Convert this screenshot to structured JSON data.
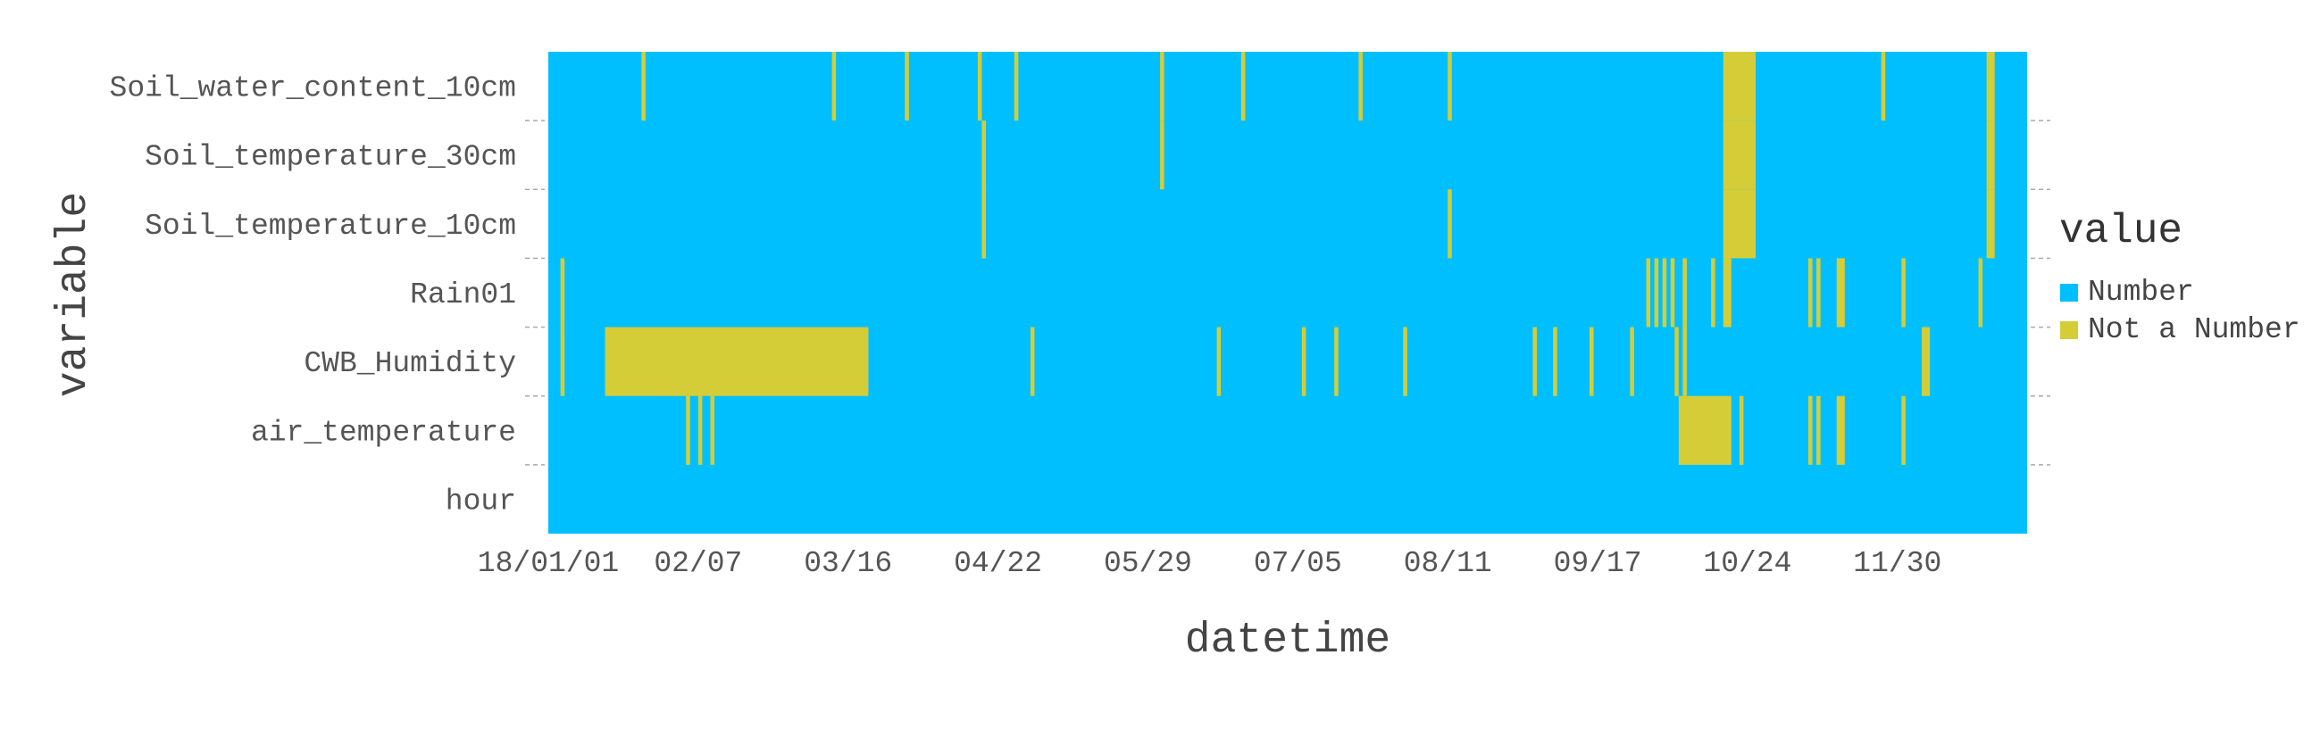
{
  "chart_data": {
    "type": "heatmap",
    "title": "",
    "xlabel": "datetime",
    "ylabel": "variable",
    "x_range": [
      "2018-01-01",
      "2018-12-31"
    ],
    "x_ticks": [
      "18/01/01",
      "02/07",
      "03/16",
      "04/22",
      "05/29",
      "07/05",
      "08/11",
      "09/17",
      "10/24",
      "11/30"
    ],
    "x_tick_dates": [
      "2018-01-01",
      "2018-02-07",
      "2018-03-16",
      "2018-04-22",
      "2018-05-29",
      "2018-07-05",
      "2018-08-11",
      "2018-09-17",
      "2018-10-24",
      "2018-11-30"
    ],
    "variables": [
      "Soil_water_content_10cm",
      "Soil_temperature_30cm",
      "Soil_temperature_10cm",
      "Rain01",
      "CWB_Humidity",
      "air_temperature",
      "hour"
    ],
    "legend": {
      "title": "value",
      "placement": "right",
      "items": [
        {
          "label": "Number",
          "color": "#00BFFF"
        },
        {
          "label": "Not a Number",
          "color": "#D4CD38"
        }
      ]
    },
    "missing_spans": [
      {
        "variable": "Soil_water_content_10cm",
        "spans": [
          [
            "2018-10-18",
            "2018-10-25"
          ],
          [
            "2018-12-22",
            "2018-12-23"
          ],
          [
            "2018-01-24",
            "2018-01-24"
          ],
          [
            "2018-03-12",
            "2018-03-12"
          ],
          [
            "2018-03-30",
            "2018-03-30"
          ],
          [
            "2018-04-17",
            "2018-04-17"
          ],
          [
            "2018-04-26",
            "2018-04-26"
          ],
          [
            "2018-06-01",
            "2018-06-01"
          ],
          [
            "2018-06-21",
            "2018-06-21"
          ],
          [
            "2018-07-20",
            "2018-07-20"
          ],
          [
            "2018-08-11",
            "2018-08-11"
          ],
          [
            "2018-11-26",
            "2018-11-26"
          ]
        ]
      },
      {
        "variable": "Soil_temperature_30cm",
        "spans": [
          [
            "2018-10-18",
            "2018-10-25"
          ],
          [
            "2018-12-22",
            "2018-12-23"
          ],
          [
            "2018-04-18",
            "2018-04-18"
          ],
          [
            "2018-06-01",
            "2018-06-01"
          ]
        ]
      },
      {
        "variable": "Soil_temperature_10cm",
        "spans": [
          [
            "2018-10-18",
            "2018-10-25"
          ],
          [
            "2018-12-22",
            "2018-12-23"
          ],
          [
            "2018-04-18",
            "2018-04-18"
          ],
          [
            "2018-08-11",
            "2018-08-11"
          ]
        ]
      },
      {
        "variable": "Rain01",
        "spans": [
          [
            "2018-01-04",
            "2018-01-04"
          ],
          [
            "2018-09-29",
            "2018-09-29"
          ],
          [
            "2018-10-01",
            "2018-10-01"
          ],
          [
            "2018-10-03",
            "2018-10-03"
          ],
          [
            "2018-10-05",
            "2018-10-05"
          ],
          [
            "2018-10-08",
            "2018-10-08"
          ],
          [
            "2018-10-15",
            "2018-10-15"
          ],
          [
            "2018-10-18",
            "2018-10-19"
          ],
          [
            "2018-11-08",
            "2018-11-08"
          ],
          [
            "2018-11-10",
            "2018-11-10"
          ],
          [
            "2018-11-15",
            "2018-11-16"
          ],
          [
            "2018-12-01",
            "2018-12-01"
          ],
          [
            "2018-12-20",
            "2018-12-20"
          ]
        ]
      },
      {
        "variable": "CWB_Humidity",
        "spans": [
          [
            "2018-01-15",
            "2018-03-20"
          ],
          [
            "2018-01-04",
            "2018-01-04"
          ],
          [
            "2018-04-30",
            "2018-04-30"
          ],
          [
            "2018-06-15",
            "2018-06-15"
          ],
          [
            "2018-07-06",
            "2018-07-06"
          ],
          [
            "2018-07-14",
            "2018-07-14"
          ],
          [
            "2018-07-31",
            "2018-07-31"
          ],
          [
            "2018-09-01",
            "2018-09-01"
          ],
          [
            "2018-09-06",
            "2018-09-06"
          ],
          [
            "2018-09-15",
            "2018-09-15"
          ],
          [
            "2018-09-25",
            "2018-09-25"
          ],
          [
            "2018-10-06",
            "2018-10-06"
          ],
          [
            "2018-10-08",
            "2018-10-08"
          ],
          [
            "2018-12-06",
            "2018-12-07"
          ]
        ]
      },
      {
        "variable": "air_temperature",
        "spans": [
          [
            "2018-10-07",
            "2018-10-19"
          ],
          [
            "2018-02-04",
            "2018-02-04"
          ],
          [
            "2018-02-07",
            "2018-02-07"
          ],
          [
            "2018-02-10",
            "2018-02-10"
          ],
          [
            "2018-10-22",
            "2018-10-22"
          ],
          [
            "2018-11-08",
            "2018-11-08"
          ],
          [
            "2018-11-10",
            "2018-11-10"
          ],
          [
            "2018-11-15",
            "2018-11-16"
          ],
          [
            "2018-12-01",
            "2018-12-01"
          ]
        ]
      },
      {
        "variable": "hour",
        "spans": []
      }
    ]
  }
}
